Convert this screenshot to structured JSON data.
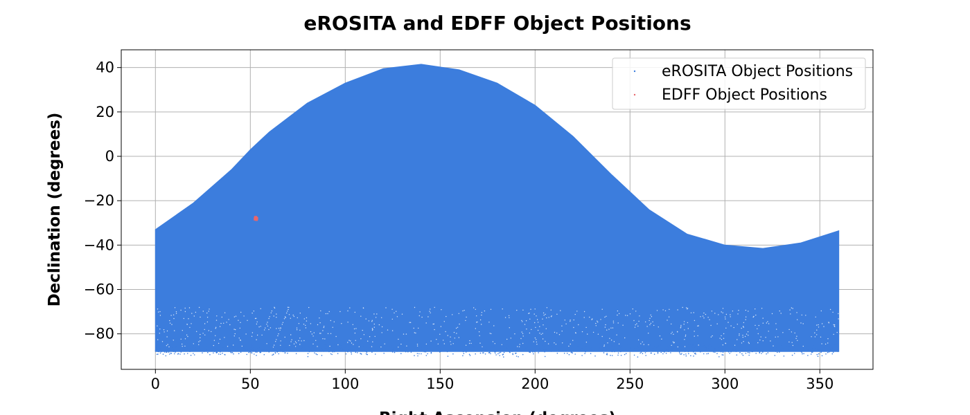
{
  "chart_data": {
    "type": "scatter",
    "title": "eROSITA and EDFF Object Positions",
    "xlabel": "Right Ascension (degrees)",
    "ylabel": "Declination (degrees)",
    "xlim": [
      -18,
      378
    ],
    "ylim": [
      -96,
      48
    ],
    "xticks": [
      0,
      50,
      100,
      150,
      200,
      250,
      300,
      350
    ],
    "yticks": [
      40,
      20,
      0,
      -20,
      -40,
      -60,
      -80
    ],
    "xtick_labels": [
      "0",
      "50",
      "100",
      "150",
      "200",
      "250",
      "300",
      "350"
    ],
    "ytick_labels": [
      "40",
      "20",
      "0",
      "−20",
      "−40",
      "−60",
      "−80"
    ],
    "grid": true,
    "legend_position": "top-right",
    "series": [
      {
        "name": "eROSITA Object Positions",
        "color": "#3c7ddd",
        "description_shape": "dense band bounded by an upper sinusoidal edge and lower edge near -88",
        "upper_boundary": [
          {
            "x": 0,
            "y": -33
          },
          {
            "x": 20,
            "y": -21
          },
          {
            "x": 40,
            "y": -6
          },
          {
            "x": 50,
            "y": 3
          },
          {
            "x": 60,
            "y": 11
          },
          {
            "x": 80,
            "y": 24
          },
          {
            "x": 100,
            "y": 33
          },
          {
            "x": 120,
            "y": 39.5
          },
          {
            "x": 140,
            "y": 41.5
          },
          {
            "x": 160,
            "y": 39
          },
          {
            "x": 180,
            "y": 33
          },
          {
            "x": 200,
            "y": 23
          },
          {
            "x": 220,
            "y": 9
          },
          {
            "x": 240,
            "y": -8
          },
          {
            "x": 260,
            "y": -24
          },
          {
            "x": 280,
            "y": -35
          },
          {
            "x": 300,
            "y": -40
          },
          {
            "x": 320,
            "y": -41.5
          },
          {
            "x": 340,
            "y": -39
          },
          {
            "x": 360,
            "y": -33.5
          }
        ],
        "lower_boundary": -88,
        "x_range": [
          0,
          360
        ]
      },
      {
        "name": "EDFF Object Positions",
        "color": "#e8666b",
        "points": [
          {
            "x": 52.5,
            "y": -28.3
          },
          {
            "x": 53.0,
            "y": -27.8
          },
          {
            "x": 53.4,
            "y": -28.0
          },
          {
            "x": 52.8,
            "y": -27.5
          },
          {
            "x": 53.2,
            "y": -28.5
          },
          {
            "x": 52.6,
            "y": -27.9
          }
        ]
      }
    ]
  }
}
